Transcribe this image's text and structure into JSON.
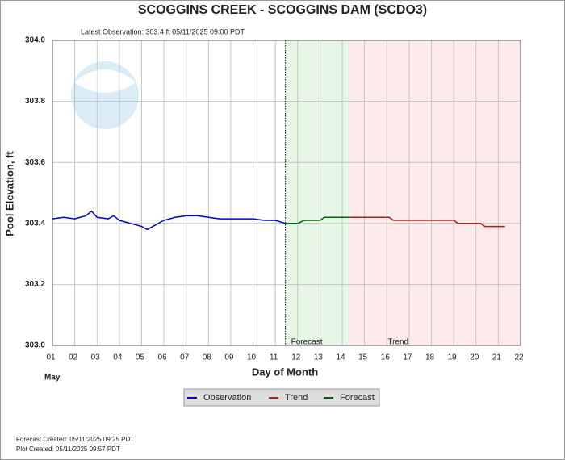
{
  "chart_data": {
    "type": "line",
    "title": "SCOGGINS CREEK - SCOGGINS DAM  (SCDO3)",
    "subtitle": "Latest Observation:  303.4 ft 05/11/2025 09:00 PDT",
    "x_label": "Day of Month",
    "x_sublabel": "May",
    "y_label": "Pool Elevation, ft",
    "xlim": [
      1,
      22
    ],
    "xticks": [
      {
        "value": 1,
        "label": "01"
      },
      {
        "value": 2,
        "label": "02"
      },
      {
        "value": 3,
        "label": "03"
      },
      {
        "value": 4,
        "label": "04"
      },
      {
        "value": 5,
        "label": "05"
      },
      {
        "value": 6,
        "label": "06"
      },
      {
        "value": 7,
        "label": "07"
      },
      {
        "value": 8,
        "label": "08"
      },
      {
        "value": 9,
        "label": "09"
      },
      10,
      11,
      12,
      13,
      14,
      15,
      16,
      17,
      18,
      19,
      20,
      21,
      22
    ],
    "ylim": [
      303.0,
      304.0
    ],
    "yticks": [
      {
        "value": 303.0,
        "label": "303.0"
      },
      303.2,
      303.4,
      303.6,
      303.8,
      {
        "value": 304.0,
        "label": "304.0"
      }
    ],
    "grid": true,
    "shaded_regions": [
      {
        "label": "Forecast",
        "xlim": [
          11.45,
          14.3
        ],
        "color": "#e6f7e6"
      },
      {
        "label": "Trend",
        "xlim": [
          14.3,
          22
        ],
        "color": "#fdeaea"
      }
    ],
    "series": [
      {
        "name": "Observation",
        "color": "#0000cc",
        "x": [
          1,
          1.5,
          2,
          2.5,
          2.75,
          3,
          3.5,
          3.75,
          4,
          4.5,
          5,
          5.25,
          5.5,
          6,
          6.5,
          7,
          7.5,
          8,
          8.5,
          9,
          9.5,
          10,
          10.5,
          11,
          11.45
        ],
        "values": [
          303.415,
          303.42,
          303.415,
          303.425,
          303.44,
          303.42,
          303.415,
          303.425,
          303.41,
          303.4,
          303.39,
          303.38,
          303.39,
          303.41,
          303.42,
          303.425,
          303.425,
          303.42,
          303.415,
          303.415,
          303.415,
          303.415,
          303.41,
          303.41,
          303.4
        ]
      },
      {
        "name": "Trend",
        "color": "#aa2222",
        "x": [
          14.3,
          16.1,
          16.3,
          19.0,
          19.2,
          20.2,
          20.4,
          21.3
        ],
        "values": [
          303.42,
          303.42,
          303.41,
          303.41,
          303.4,
          303.4,
          303.39,
          303.39
        ]
      },
      {
        "name": "Forecast",
        "color": "#006600",
        "x": [
          11.45,
          12.0,
          12.3,
          13.0,
          13.2,
          14.3
        ],
        "values": [
          303.4,
          303.4,
          303.41,
          303.41,
          303.42,
          303.42
        ]
      }
    ],
    "footer": [
      "Forecast Created: 05/11/2025 09:25 PDT",
      "Plot Created: 05/11/2025 09:57 PDT"
    ]
  }
}
